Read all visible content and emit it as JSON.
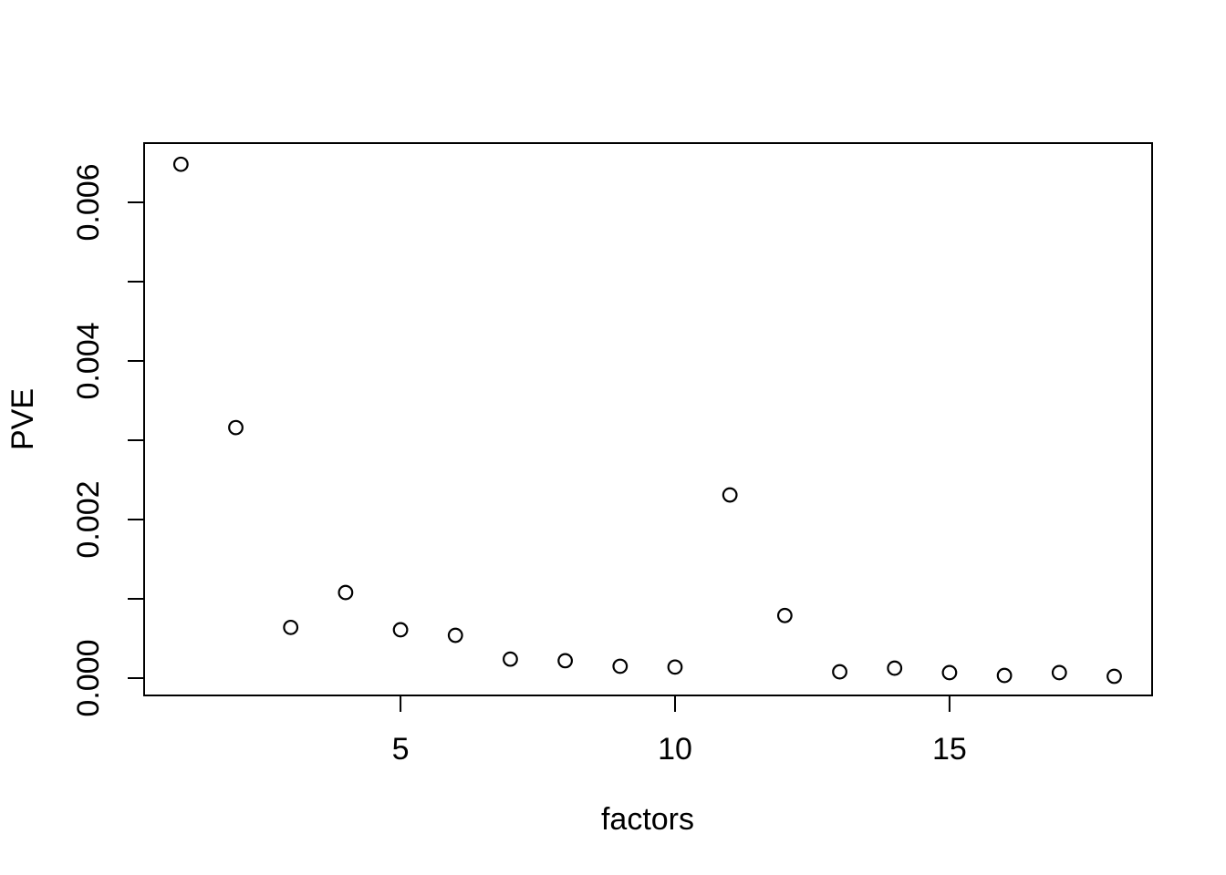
{
  "colors": {
    "foreground": "#000000",
    "background": "#ffffff"
  },
  "chart_data": {
    "type": "scatter",
    "title": "",
    "xlabel": "factors",
    "ylabel": "PVE",
    "x": [
      1,
      2,
      3,
      4,
      5,
      6,
      7,
      8,
      9,
      10,
      11,
      12,
      13,
      14,
      15,
      16,
      17,
      18
    ],
    "y": [
      0.00648,
      0.00316,
      0.00064,
      0.00108,
      0.00061,
      0.00054,
      0.00024,
      0.00022,
      0.00015,
      0.00014,
      0.00231,
      0.00079,
      8e-05,
      0.000126,
      7e-05,
      3.4e-05,
      7e-05,
      2.3e-05
    ],
    "xlim": [
      0.33,
      18.69
    ],
    "ylim": [
      -0.000218,
      0.006747
    ],
    "x_ticks": [
      {
        "value": 5,
        "label": "5"
      },
      {
        "value": 10,
        "label": "10"
      },
      {
        "value": 15,
        "label": "15"
      }
    ],
    "y_ticks": [
      {
        "value": 0.0,
        "label": "0.000"
      },
      {
        "value": 0.001,
        "label": ""
      },
      {
        "value": 0.002,
        "label": "0.002"
      },
      {
        "value": 0.003,
        "label": ""
      },
      {
        "value": 0.004,
        "label": "0.004"
      },
      {
        "value": 0.005,
        "label": ""
      },
      {
        "value": 0.006,
        "label": "0.006"
      }
    ],
    "grid": false,
    "legend": null,
    "point_style": {
      "marker": "open-circle",
      "color": "#000000",
      "radius": 7.3,
      "stroke_width": 2.2
    }
  }
}
